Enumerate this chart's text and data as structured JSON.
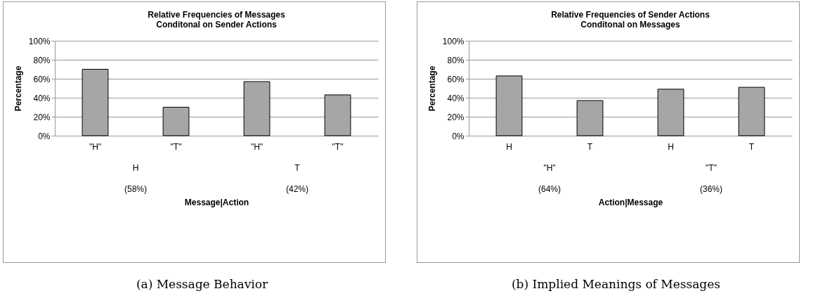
{
  "chart_data": [
    {
      "type": "bar",
      "title": "Relative Frequencies of Messages",
      "subtitle": "Conditonal on Sender Actions",
      "xlabel": "Message|Action",
      "ylabel": "Percentage",
      "categories": [
        "\"H\"",
        "\"T\"",
        "\"H\"",
        "\"T\""
      ],
      "values": [
        70,
        30,
        57,
        43
      ],
      "color": "#a6a6a6",
      "ylim": [
        0,
        100
      ],
      "yticks": [
        {
          "value": 0,
          "label": "0%"
        },
        {
          "value": 20,
          "label": "20%"
        },
        {
          "value": 40,
          "label": "40%"
        },
        {
          "value": 60,
          "label": "60%"
        },
        {
          "value": 80,
          "label": "80%"
        },
        {
          "value": 100,
          "label": "100%"
        }
      ],
      "grid": "y",
      "annotations": [
        "H",
        "(58%)",
        "T",
        "(42%)",
        "(a) Message Behavior"
      ]
    },
    {
      "type": "bar",
      "title": "Relative Frequencies of Sender Actions",
      "subtitle": "Conditonal on Messages",
      "xlabel": "Action|Message",
      "ylabel": "Percentage",
      "categories": [
        "H",
        "T",
        "H",
        "T"
      ],
      "values": [
        63,
        37,
        49,
        51
      ],
      "color": "#a6a6a6",
      "ylim": [
        0,
        100
      ],
      "yticks": [
        {
          "value": 0,
          "label": "0%"
        },
        {
          "value": 20,
          "label": "20%"
        },
        {
          "value": 40,
          "label": "40%"
        },
        {
          "value": 60,
          "label": "60%"
        },
        {
          "value": 80,
          "label": "80%"
        },
        {
          "value": 100,
          "label": "100%"
        }
      ],
      "grid": "y",
      "annotations": [
        "\"H\"",
        "(64%)",
        "\"T\"",
        "(36%)",
        "(b) Implied Meanings of Messages"
      ]
    }
  ]
}
